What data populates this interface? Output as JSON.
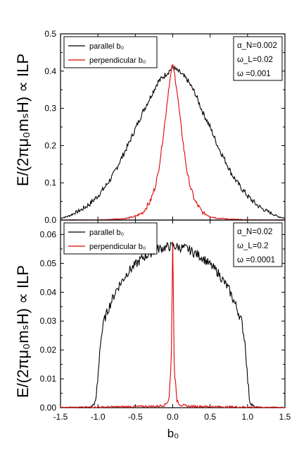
{
  "ylabel_upper": "E/(2πμ₀mₛH) ∝ ILP",
  "ylabel_lower": "E/(2πμ₀mₛH) ∝ ILP",
  "xlabel": "b₀",
  "chart_data": [
    {
      "type": "line",
      "panel": "upper",
      "xlim": [
        -1.5,
        1.5
      ],
      "ylim": [
        0,
        0.5
      ],
      "yticks": [
        "0.0",
        "0.1",
        "0.2",
        "0.3",
        "0.4",
        "0.5"
      ],
      "xticks": [],
      "legend_position": "top-left",
      "params": [
        "α_N=0.002",
        "ω_L=0.02",
        "ω =0.001"
      ],
      "series": [
        {
          "name": "parallel b₀",
          "color": "#000000",
          "x": [
            -1.5,
            -1.4,
            -1.3,
            -1.2,
            -1.1,
            -1.0,
            -0.9,
            -0.8,
            -0.7,
            -0.6,
            -0.5,
            -0.4,
            -0.3,
            -0.2,
            -0.1,
            0.0,
            0.1,
            0.2,
            0.3,
            0.4,
            0.5,
            0.6,
            0.7,
            0.8,
            0.9,
            1.0,
            1.1,
            1.2,
            1.3,
            1.4,
            1.5
          ],
          "y": [
            0.005,
            0.01,
            0.02,
            0.03,
            0.045,
            0.065,
            0.09,
            0.12,
            0.16,
            0.2,
            0.245,
            0.29,
            0.33,
            0.37,
            0.39,
            0.41,
            0.395,
            0.375,
            0.34,
            0.29,
            0.25,
            0.2,
            0.16,
            0.12,
            0.09,
            0.065,
            0.045,
            0.03,
            0.02,
            0.01,
            0.005
          ]
        },
        {
          "name": "perpendicular b₀",
          "color": "#e00000",
          "x": [
            -1.5,
            -1.2,
            -1.0,
            -0.8,
            -0.6,
            -0.5,
            -0.4,
            -0.3,
            -0.25,
            -0.2,
            -0.15,
            -0.1,
            -0.05,
            0.0,
            0.05,
            0.1,
            0.15,
            0.2,
            0.25,
            0.3,
            0.4,
            0.5,
            0.6,
            0.8,
            1.0,
            1.2,
            1.5
          ],
          "y": [
            0.0,
            0.0,
            0.0,
            0.002,
            0.005,
            0.01,
            0.02,
            0.05,
            0.08,
            0.12,
            0.19,
            0.27,
            0.36,
            0.42,
            0.36,
            0.27,
            0.19,
            0.12,
            0.08,
            0.05,
            0.02,
            0.01,
            0.005,
            0.002,
            0.0,
            0.0,
            0.0
          ]
        }
      ]
    },
    {
      "type": "line",
      "panel": "lower",
      "xlim": [
        -1.5,
        1.5
      ],
      "ylim": [
        0,
        0.065
      ],
      "yticks": [
        "0.00",
        "0.01",
        "0.02",
        "0.03",
        "0.04",
        "0.05",
        "0.06"
      ],
      "xticks": [
        "-1.5",
        "-1.0",
        "-0.5",
        "0.0",
        "0.5",
        "1.0",
        "1.5"
      ],
      "legend_position": "top-left",
      "params": [
        "α_N=0.02",
        "ω_L=0.2",
        "ω =0.0001"
      ],
      "series": [
        {
          "name": "parallel b₀",
          "color": "#000000",
          "x": [
            -1.5,
            -1.1,
            -1.03,
            -1.0,
            -0.97,
            -0.92,
            -0.85,
            -0.75,
            -0.6,
            -0.4,
            -0.2,
            0.0,
            0.2,
            0.4,
            0.6,
            0.75,
            0.85,
            0.92,
            0.97,
            1.0,
            1.03,
            1.1,
            1.5
          ],
          "y": [
            0.0,
            0.0,
            0.002,
            0.01,
            0.022,
            0.03,
            0.035,
            0.041,
            0.047,
            0.052,
            0.055,
            0.056,
            0.055,
            0.052,
            0.047,
            0.041,
            0.035,
            0.03,
            0.022,
            0.01,
            0.002,
            0.0,
            0.0
          ]
        },
        {
          "name": "perpendicular b₀",
          "color": "#e00000",
          "x": [
            -1.5,
            -0.2,
            -0.1,
            -0.05,
            -0.02,
            0.0,
            0.02,
            0.05,
            0.1,
            0.2,
            1.5
          ],
          "y": [
            0.0,
            0.0005,
            0.001,
            0.003,
            0.015,
            0.058,
            0.015,
            0.003,
            0.001,
            0.0005,
            0.0
          ]
        }
      ]
    }
  ]
}
